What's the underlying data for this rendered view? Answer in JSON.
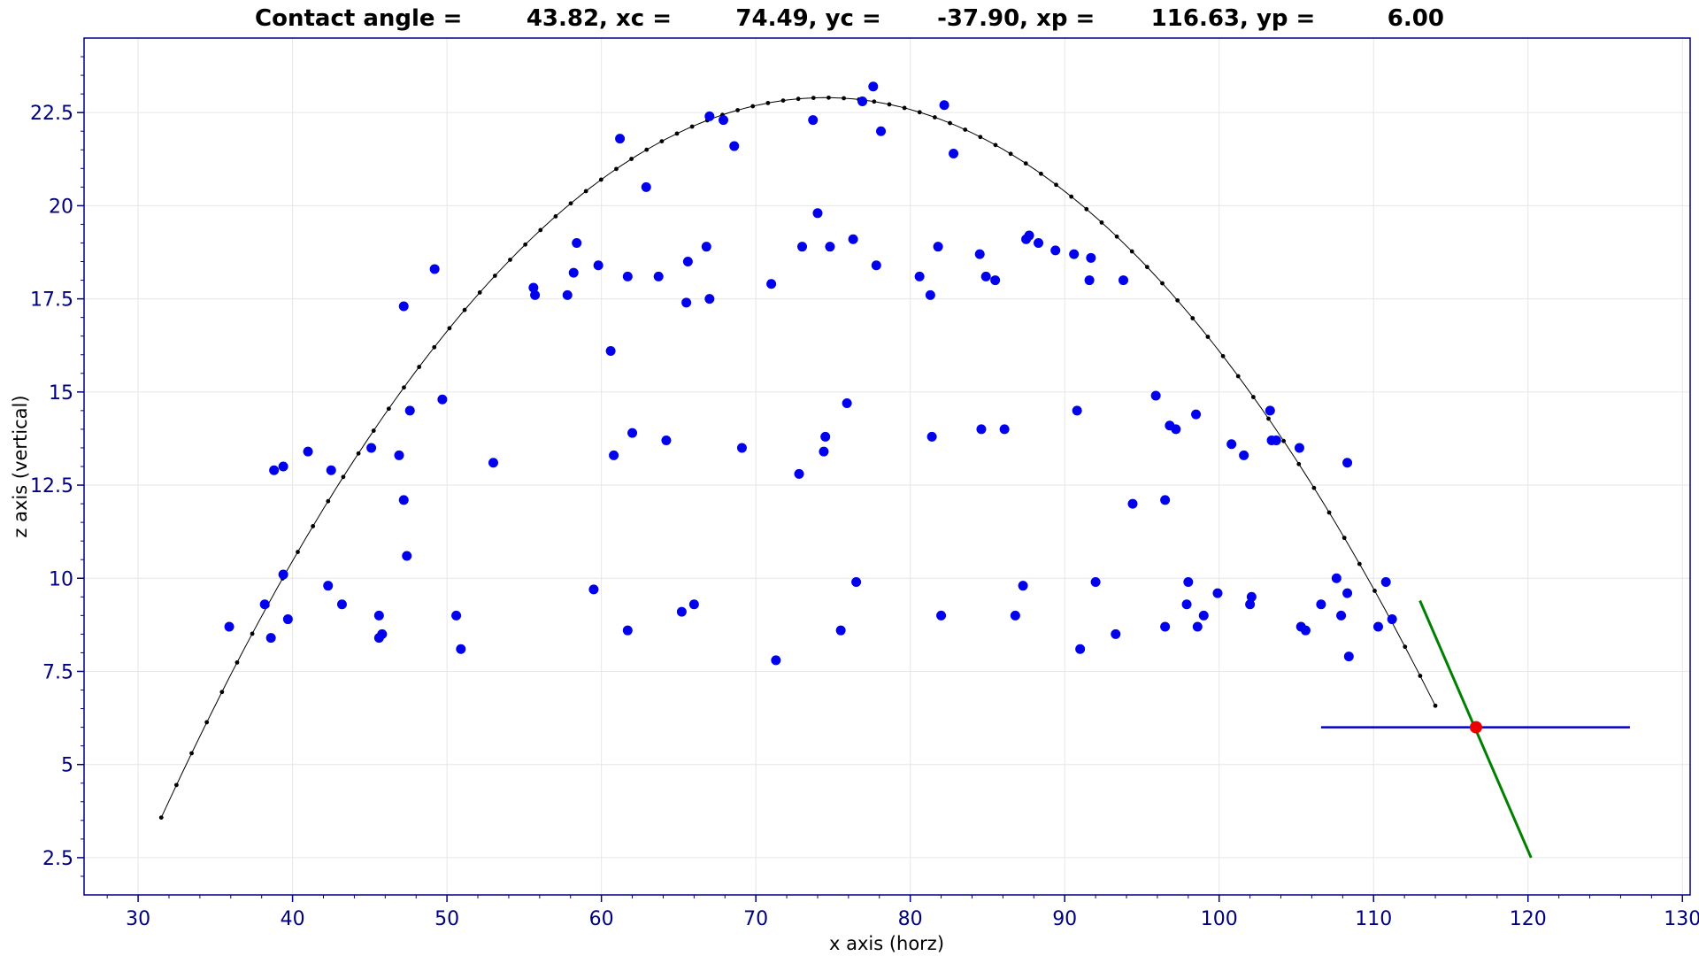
{
  "chart_data": {
    "type": "scatter",
    "title": "Contact angle =        43.82, xc =        74.49, yc =       -37.90, xp =       116.63, yp =         6.00",
    "xlabel": "x axis (horz)",
    "ylabel": "z axis (vertical)",
    "xlim": [
      26.5,
      130.5
    ],
    "ylim": [
      1.5,
      24.5
    ],
    "x_ticks": [
      30,
      40,
      50,
      60,
      70,
      80,
      90,
      100,
      110,
      120,
      130
    ],
    "x_tick_labels": [
      "30",
      "40",
      "50",
      "60",
      "70",
      "80",
      "90",
      "100",
      "110",
      "120",
      "130"
    ],
    "y_ticks": [
      2.5,
      5,
      7.5,
      10,
      12.5,
      15,
      17.5,
      20,
      22.5
    ],
    "y_tick_labels": [
      "2.5",
      "5",
      "7.5",
      "10",
      "12.5",
      "15",
      "17.5",
      "20",
      "22.5"
    ],
    "grid": true,
    "colors": {
      "points": "#0000ee",
      "fit_curve": "#000000",
      "tangent": "#008000",
      "baseline": "#0000cc",
      "contact_point": "#ee0000",
      "axes": "#000080"
    },
    "fit_curve": {
      "x_start": 31.5,
      "x_end": 114.0,
      "center_x": 74.49,
      "peak_z": 22.9,
      "half_width": 46.8
    },
    "tangent_line": {
      "x": [
        113.0,
        120.2
      ],
      "y": [
        9.4,
        2.5
      ]
    },
    "baseline": {
      "x": [
        106.6,
        126.6
      ],
      "y": [
        6.0,
        6.0
      ]
    },
    "contact_point": {
      "x": 116.63,
      "y": 6.0
    },
    "series": [
      {
        "x": [
          35.9,
          38.2,
          38.6,
          38.8,
          39.4,
          39.4,
          39.7,
          41.0,
          42.3,
          42.5,
          43.2,
          45.1,
          45.6,
          45.6,
          45.8,
          46.9,
          47.2,
          47.2,
          47.4,
          47.6,
          49.2,
          49.7,
          50.6,
          50.9,
          53.0,
          55.6,
          55.7,
          57.8,
          58.2,
          58.4,
          59.5,
          59.8,
          60.6,
          60.8,
          61.2,
          61.7,
          61.7,
          62.0,
          62.9,
          63.7,
          64.2,
          65.2,
          65.5,
          65.6,
          66.0,
          66.8,
          67.0,
          67.0,
          67.9,
          68.6,
          69.1,
          71.0,
          71.3,
          72.8,
          73.0,
          73.7,
          74.0,
          74.4,
          74.5,
          74.8,
          75.5,
          75.9,
          76.3,
          76.5,
          76.9,
          77.6,
          77.8,
          78.1,
          80.6,
          81.3,
          81.4,
          81.8,
          82.0,
          82.2,
          82.8,
          84.5,
          84.6,
          84.9,
          85.5,
          86.1,
          86.8,
          87.3,
          87.5,
          87.7,
          88.3,
          89.4,
          90.6,
          90.8,
          91.0,
          91.6,
          91.7,
          92.0,
          93.3,
          93.8,
          94.4,
          95.9,
          96.5,
          96.5,
          96.8,
          97.2,
          97.9,
          98.0,
          98.5,
          98.6,
          99.0,
          99.9,
          100.8,
          101.6,
          102.0,
          102.1,
          103.3,
          103.4,
          103.7,
          105.2,
          105.3,
          105.6,
          106.6,
          107.6,
          107.9,
          108.3,
          108.3,
          108.4,
          110.3,
          110.8,
          111.2
        ],
        "y": [
          8.7,
          9.3,
          8.4,
          12.9,
          10.1,
          13.0,
          8.9,
          13.4,
          9.8,
          12.9,
          9.3,
          13.5,
          9.0,
          8.4,
          8.5,
          13.3,
          17.3,
          12.1,
          10.6,
          14.5,
          18.3,
          14.8,
          9.0,
          8.1,
          13.1,
          17.8,
          17.6,
          17.6,
          18.2,
          19.0,
          9.7,
          18.4,
          16.1,
          13.3,
          21.8,
          18.1,
          8.6,
          13.9,
          20.5,
          18.1,
          13.7,
          9.1,
          17.4,
          18.5,
          9.3,
          18.9,
          22.4,
          17.5,
          22.3,
          21.6,
          13.5,
          17.9,
          7.8,
          12.8,
          18.9,
          22.3,
          19.8,
          13.4,
          13.8,
          18.9,
          8.6,
          14.7,
          19.1,
          9.9,
          22.8,
          23.2,
          18.4,
          22.0,
          18.1,
          17.6,
          13.8,
          18.9,
          9.0,
          22.7,
          21.4,
          18.7,
          14.0,
          18.1,
          18.0,
          14.0,
          9.0,
          9.8,
          19.1,
          19.2,
          19.0,
          18.8,
          18.7,
          14.5,
          8.1,
          18.0,
          18.6,
          9.9,
          8.5,
          18.0,
          12.0,
          14.9,
          12.1,
          8.7,
          14.1,
          14.0,
          9.3,
          9.9,
          14.4,
          8.7,
          9.0,
          9.6,
          13.6,
          13.3,
          9.3,
          9.5,
          14.5,
          13.7,
          13.7,
          13.5,
          8.7,
          8.6,
          9.3,
          10.0,
          9.0,
          9.6,
          13.1,
          7.9,
          8.7,
          9.9,
          8.9
        ]
      }
    ]
  }
}
